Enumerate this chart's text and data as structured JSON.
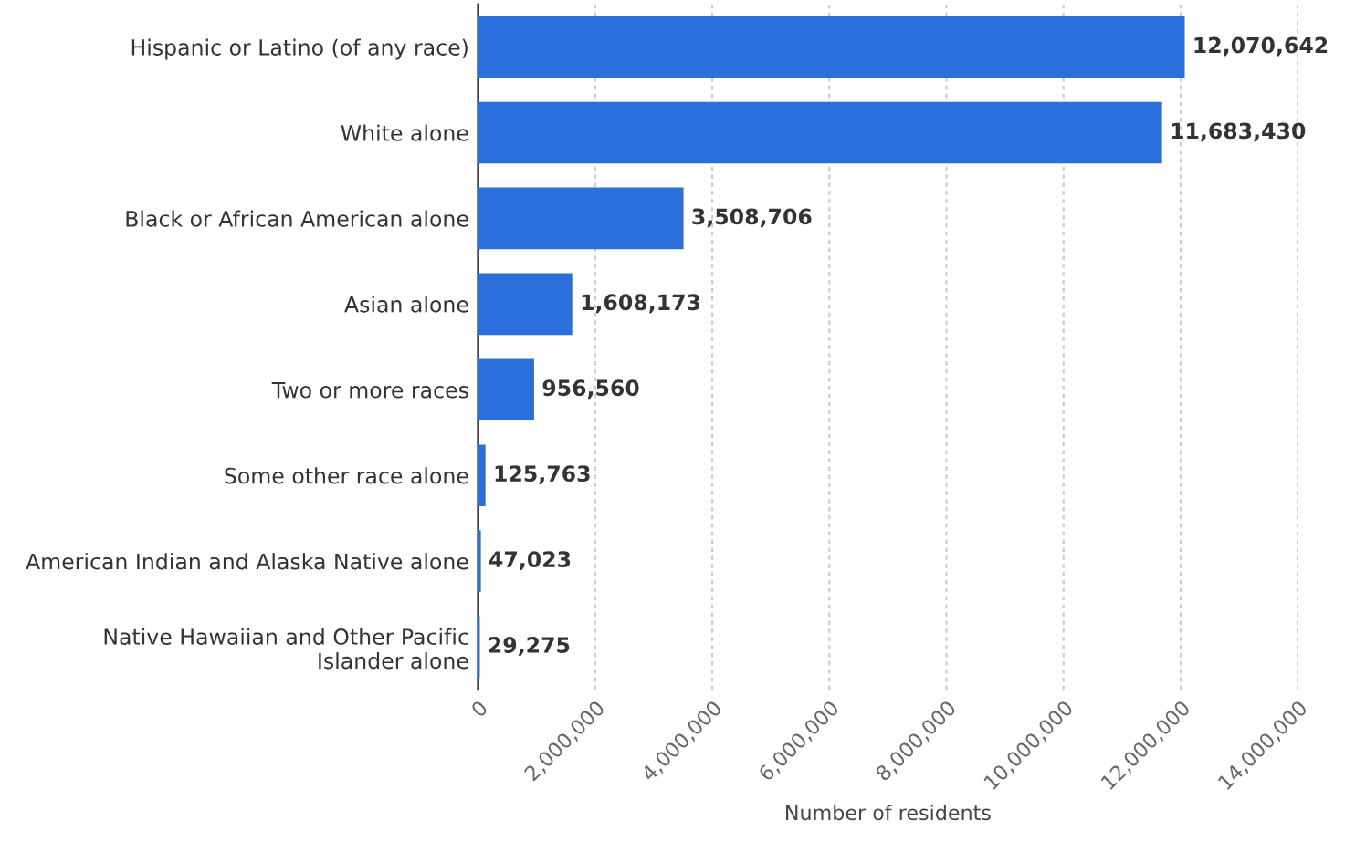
{
  "chart_data": {
    "type": "bar",
    "orientation": "horizontal",
    "xlabel": "Number of residents",
    "categories": [
      "Hispanic or Latino (of any race)",
      "White alone",
      "Black or African American alone",
      "Asian alone",
      "Two or more races",
      "Some other race alone",
      "American Indian and Alaska Native alone",
      "Native Hawaiian and Other Pacific\nIslander alone"
    ],
    "values": [
      12070642,
      11683430,
      3508706,
      1608173,
      956560,
      125763,
      47023,
      29275
    ],
    "color": "#2a6fdb",
    "value_labels": [
      "12,070,642",
      "11,683,430",
      "3,508,706",
      "1,608,173",
      "956,560",
      "125,763",
      "47,023",
      "29,275"
    ],
    "xlim": [
      0,
      14000000
    ],
    "xticks": [
      {
        "value": 0,
        "label": "0"
      },
      {
        "value": 2000000,
        "label": "2,000,000"
      },
      {
        "value": 4000000,
        "label": "4,000,000"
      },
      {
        "value": 6000000,
        "label": "6,000,000"
      },
      {
        "value": 8000000,
        "label": "8,000,000"
      },
      {
        "value": 10000000,
        "label": "10,000,000"
      },
      {
        "value": 12000000,
        "label": "12,000,000"
      },
      {
        "value": 14000000,
        "label": "14,000,000"
      }
    ],
    "grid": "x"
  }
}
